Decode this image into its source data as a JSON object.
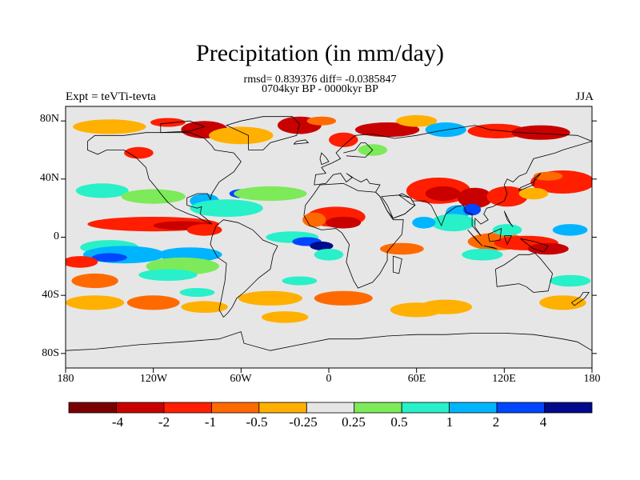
{
  "header": {
    "title": "Precipitation (in mm/day)",
    "stats": "rmsd= 0.839376 diff= -0.0385847",
    "period": "0704kyr BP - 0000kyr BP",
    "experiment": "Expt = teVTi-tevta",
    "season": "JJA"
  },
  "axes": {
    "lat_ticks": [
      "80N",
      "40N",
      "0",
      "40S",
      "80S"
    ],
    "lon_ticks": [
      "180",
      "120W",
      "60W",
      "0",
      "60E",
      "120E",
      "180"
    ]
  },
  "colorbar": {
    "labels": [
      "-4",
      "-2",
      "-1",
      "-0.5",
      "-0.25",
      "0.25",
      "0.5",
      "1",
      "2",
      "4"
    ],
    "colors": [
      "#7a0000",
      "#c80000",
      "#ff1e00",
      "#ff6a00",
      "#ffb000",
      "#e6e6e6",
      "#7dea5a",
      "#28f0c8",
      "#00b4ff",
      "#0046ff",
      "#000a8c"
    ]
  },
  "colors": {
    "land_outline": "#000000",
    "neutral": "#e6e6e6"
  }
}
